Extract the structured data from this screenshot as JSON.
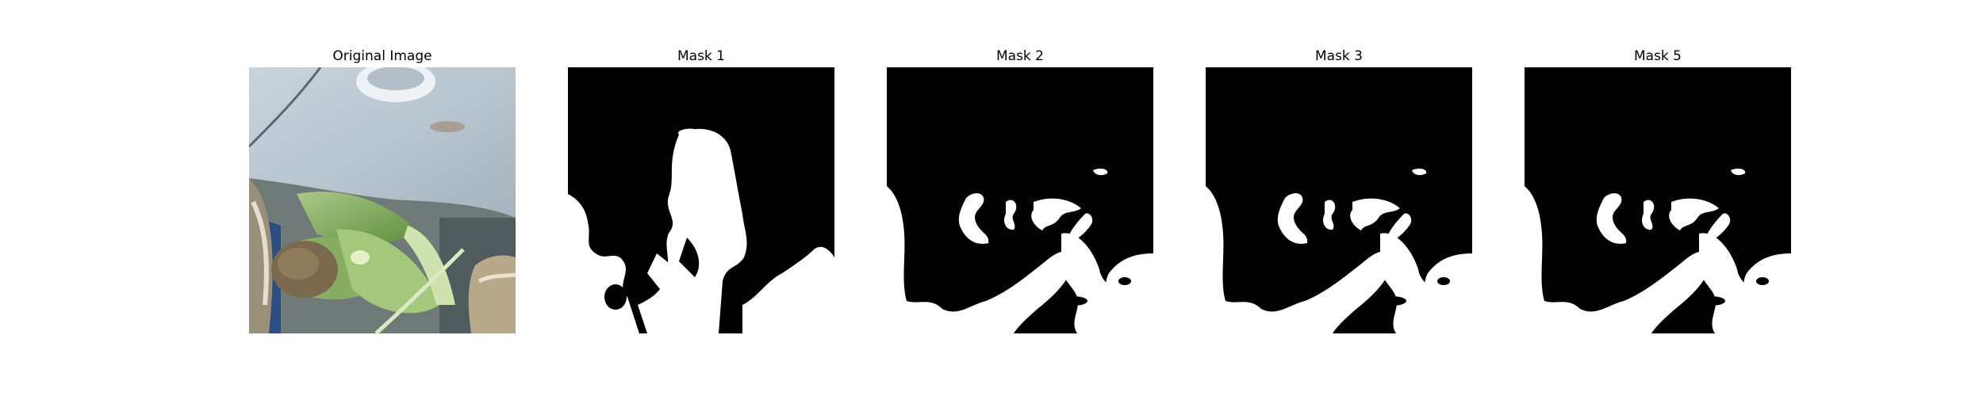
{
  "panels": [
    {
      "title": "Original Image",
      "kind": "photo"
    },
    {
      "title": "Mask 1",
      "kind": "mask1"
    },
    {
      "title": "Mask 2",
      "kind": "mask2"
    },
    {
      "title": "Mask 3",
      "kind": "mask2"
    },
    {
      "title": "Mask 5",
      "kind": "mask2"
    }
  ],
  "colors": {
    "mask_background": "#000000",
    "mask_foreground": "#ffffff"
  }
}
